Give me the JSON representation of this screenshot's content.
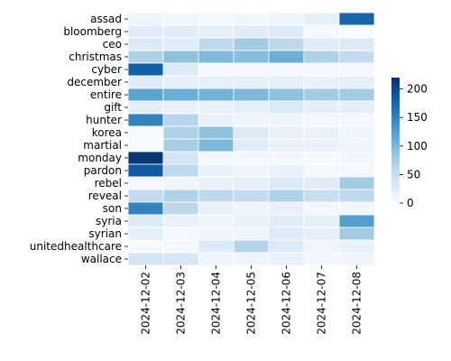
{
  "chart_data": {
    "type": "heatmap",
    "rows": [
      "assad",
      "bloomberg",
      "ceo",
      "christmas",
      "cyber",
      "december",
      "entire",
      "gift",
      "hunter",
      "korea",
      "martial",
      "monday",
      "pardon",
      "rebel",
      "reveal",
      "son",
      "syria",
      "syrian",
      "unitedhealthcare",
      "wallace"
    ],
    "columns": [
      "2024-12-02",
      "2024-12-03",
      "2024-12-04",
      "2024-12-05",
      "2024-12-06",
      "2024-12-07",
      "2024-12-08"
    ],
    "values": [
      [
        12,
        8,
        5,
        8,
        12,
        20,
        175
      ],
      [
        25,
        25,
        20,
        25,
        30,
        5,
        0
      ],
      [
        30,
        25,
        60,
        80,
        60,
        25,
        30
      ],
      [
        70,
        90,
        100,
        95,
        110,
        70,
        55
      ],
      [
        180,
        30,
        5,
        5,
        5,
        5,
        5
      ],
      [
        25,
        20,
        20,
        20,
        20,
        15,
        20
      ],
      [
        120,
        110,
        105,
        100,
        90,
        80,
        80
      ],
      [
        20,
        15,
        15,
        20,
        30,
        20,
        20
      ],
      [
        150,
        65,
        15,
        10,
        10,
        5,
        5
      ],
      [
        0,
        70,
        90,
        30,
        15,
        15,
        10
      ],
      [
        0,
        75,
        100,
        25,
        15,
        15,
        10
      ],
      [
        215,
        40,
        5,
        5,
        5,
        3,
        5
      ],
      [
        185,
        60,
        15,
        10,
        15,
        5,
        5
      ],
      [
        5,
        10,
        15,
        20,
        30,
        25,
        80
      ],
      [
        55,
        70,
        60,
        55,
        70,
        50,
        60
      ],
      [
        150,
        60,
        15,
        10,
        15,
        5,
        5
      ],
      [
        30,
        15,
        10,
        15,
        25,
        20,
        125
      ],
      [
        20,
        5,
        10,
        10,
        30,
        20,
        80
      ],
      [
        2,
        3,
        30,
        65,
        30,
        10,
        15
      ],
      [
        40,
        35,
        10,
        10,
        15,
        5,
        10
      ]
    ],
    "colorbar": {
      "min": 0,
      "max": 220,
      "ticks": [
        0,
        50,
        100,
        150,
        200
      ]
    },
    "colormap": "Blues",
    "xlabel": "",
    "ylabel": "",
    "title": ""
  }
}
